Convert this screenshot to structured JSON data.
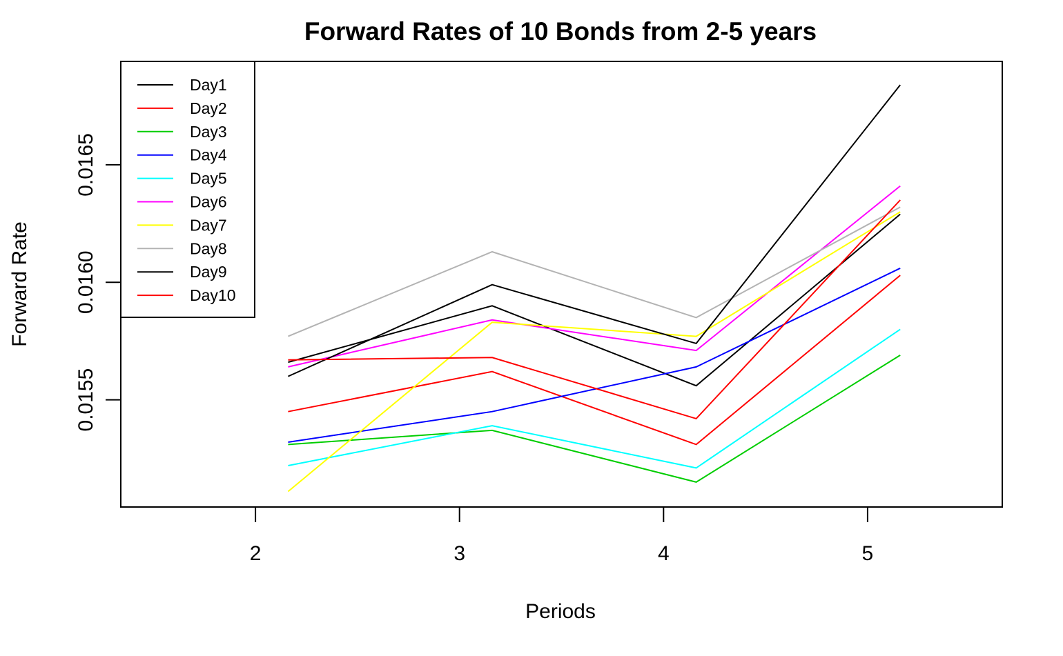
{
  "chart_data": {
    "type": "line",
    "title": "Forward Rates of 10 Bonds from 2-5 years",
    "xlabel": "Periods",
    "ylabel": "Forward Rate",
    "x_ticks": [
      "2",
      "3",
      "4",
      "5"
    ],
    "y_ticks": [
      "0.0155",
      "0.0160",
      "0.0165"
    ],
    "x": [
      2.16,
      3.16,
      4.16,
      5.16
    ],
    "xlim": [
      1.34,
      5.66
    ],
    "ylim": [
      0.015044,
      0.01694
    ],
    "legend_position": "top-left",
    "grid": false,
    "series": [
      {
        "name": "Day1",
        "color": "#000000",
        "values": [
          0.01566,
          0.0159,
          0.01556,
          0.01629
        ]
      },
      {
        "name": "Day2",
        "color": "#FF0000",
        "values": [
          0.01545,
          0.01562,
          0.01531,
          0.01603
        ]
      },
      {
        "name": "Day3",
        "color": "#00CD00",
        "values": [
          0.01531,
          0.01537,
          0.01515,
          0.01569
        ]
      },
      {
        "name": "Day4",
        "color": "#0000FF",
        "values": [
          0.01532,
          0.01545,
          0.01564,
          0.01606
        ]
      },
      {
        "name": "Day5",
        "color": "#00FFFF",
        "values": [
          0.01522,
          0.01539,
          0.01521,
          0.0158
        ]
      },
      {
        "name": "Day6",
        "color": "#FF00FF",
        "values": [
          0.01564,
          0.01584,
          0.01571,
          0.01641
        ]
      },
      {
        "name": "Day7",
        "color": "#FFFF00",
        "values": [
          0.01511,
          0.01583,
          0.01577,
          0.0163
        ]
      },
      {
        "name": "Day8",
        "color": "#B3B3B3",
        "values": [
          0.01577,
          0.01613,
          0.01585,
          0.01632
        ]
      },
      {
        "name": "Day9",
        "color": "#000000",
        "values": [
          0.0156,
          0.01599,
          0.01574,
          0.01684
        ]
      },
      {
        "name": "Day10",
        "color": "#FF0000",
        "values": [
          0.01567,
          0.01568,
          0.01542,
          0.01635
        ]
      }
    ]
  }
}
